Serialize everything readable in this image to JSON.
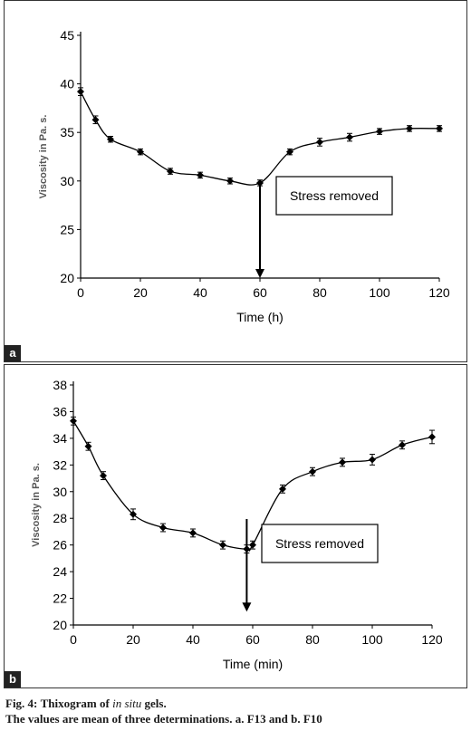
{
  "chart_data": [
    {
      "panel_label": "a",
      "type": "line",
      "xlabel": "Time (h)",
      "ylabel": "Viscosity in Pa. s.",
      "xlim": [
        0,
        120
      ],
      "ylim": [
        20,
        45
      ],
      "xticks": [
        "0",
        "20",
        "40",
        "60",
        "80",
        "100",
        "120"
      ],
      "yticks": [
        "20",
        "25",
        "30",
        "35",
        "40",
        "45"
      ],
      "series": [
        {
          "x": [
            0,
            5,
            10,
            20,
            30,
            40,
            50,
            60,
            70,
            80,
            90,
            100,
            110,
            120
          ],
          "y": [
            39.2,
            36.3,
            34.3,
            33.0,
            31.0,
            30.6,
            30.0,
            29.8,
            33.0,
            34.0,
            34.5,
            35.1,
            35.4,
            35.4
          ],
          "err": [
            0.4,
            0.4,
            0.3,
            0.3,
            0.3,
            0.3,
            0.3,
            0.3,
            0.3,
            0.4,
            0.4,
            0.3,
            0.3,
            0.3
          ]
        }
      ],
      "annotation": {
        "text": "Stress removed",
        "x": 60,
        "arrow_to_y": 20
      }
    },
    {
      "panel_label": "b",
      "type": "line",
      "xlabel": "Time (min)",
      "ylabel": "Viscosity in Pa. s.",
      "xlim": [
        0,
        120
      ],
      "ylim": [
        20,
        38
      ],
      "xticks": [
        "0",
        "20",
        "40",
        "60",
        "80",
        "100",
        "120"
      ],
      "yticks": [
        "20",
        "22",
        "24",
        "26",
        "28",
        "30",
        "32",
        "34",
        "36",
        "38"
      ],
      "series": [
        {
          "x": [
            0,
            5,
            10,
            20,
            30,
            40,
            50,
            58,
            60,
            70,
            80,
            90,
            100,
            110,
            120
          ],
          "y": [
            35.3,
            33.4,
            31.2,
            28.3,
            27.3,
            26.9,
            26.0,
            25.7,
            26.0,
            30.2,
            31.5,
            32.2,
            32.4,
            33.5,
            34.1
          ],
          "err": [
            0.3,
            0.3,
            0.3,
            0.4,
            0.3,
            0.3,
            0.3,
            0.3,
            0.3,
            0.3,
            0.3,
            0.3,
            0.4,
            0.3,
            0.5
          ]
        }
      ],
      "annotation": {
        "text": "Stress removed",
        "x": 58,
        "arrow_to_y": 21
      }
    }
  ],
  "caption": {
    "fig_label": "Fig. 4:",
    "title_prefix": "Thixogram of",
    "title_italic": "in situ",
    "title_suffix": "gels.",
    "note": "The values are mean of three determinations. a. F13 and b. F10"
  }
}
